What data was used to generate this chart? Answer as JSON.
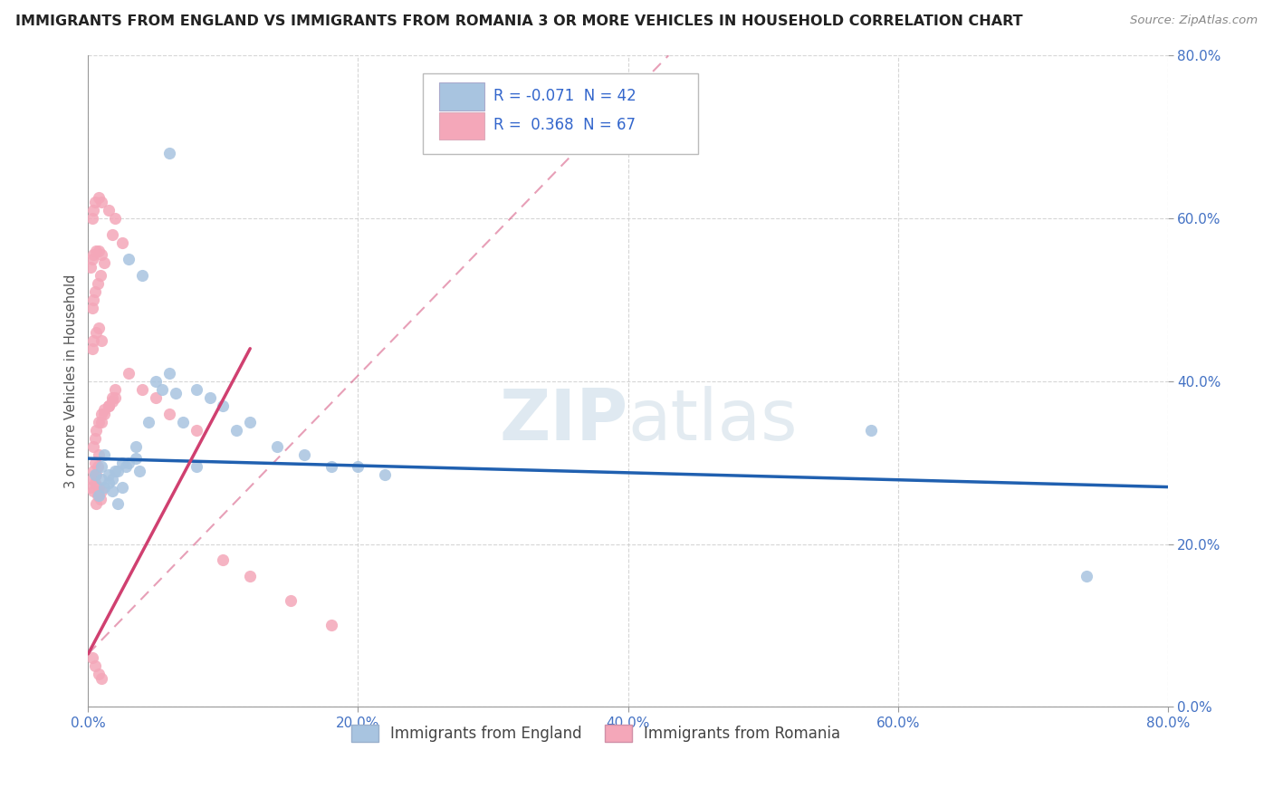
{
  "title": "IMMIGRANTS FROM ENGLAND VS IMMIGRANTS FROM ROMANIA 3 OR MORE VEHICLES IN HOUSEHOLD CORRELATION CHART",
  "source": "Source: ZipAtlas.com",
  "ylabel": "3 or more Vehicles in Household",
  "xlim": [
    0.0,
    0.8
  ],
  "ylim": [
    0.0,
    0.8
  ],
  "xticks": [
    0.0,
    0.2,
    0.4,
    0.6,
    0.8
  ],
  "yticks": [
    0.0,
    0.2,
    0.4,
    0.6,
    0.8
  ],
  "tick_labels": [
    "0.0%",
    "20.0%",
    "40.0%",
    "60.0%",
    "80.0%"
  ],
  "watermark_zip": "ZIP",
  "watermark_atlas": "atlas",
  "legend_england": "Immigrants from England",
  "legend_romania": "Immigrants from Romania",
  "R_england": -0.071,
  "N_england": 42,
  "R_romania": 0.368,
  "N_romania": 67,
  "color_england": "#a8c4e0",
  "color_romania": "#f4a7b9",
  "line_color_england": "#2060b0",
  "line_color_romania": "#d04070",
  "england_x": [
    0.005,
    0.008,
    0.01,
    0.012,
    0.015,
    0.018,
    0.02,
    0.022,
    0.025,
    0.01,
    0.012,
    0.015,
    0.018,
    0.022,
    0.028,
    0.03,
    0.035,
    0.038,
    0.045,
    0.05,
    0.055,
    0.06,
    0.065,
    0.07,
    0.08,
    0.09,
    0.1,
    0.11,
    0.12,
    0.14,
    0.16,
    0.18,
    0.2,
    0.22,
    0.03,
    0.04,
    0.06,
    0.08,
    0.58,
    0.74,
    0.025,
    0.035
  ],
  "england_y": [
    0.285,
    0.26,
    0.28,
    0.27,
    0.275,
    0.265,
    0.29,
    0.25,
    0.27,
    0.295,
    0.31,
    0.285,
    0.28,
    0.29,
    0.295,
    0.3,
    0.305,
    0.29,
    0.35,
    0.4,
    0.39,
    0.41,
    0.385,
    0.35,
    0.39,
    0.38,
    0.37,
    0.34,
    0.35,
    0.32,
    0.31,
    0.295,
    0.295,
    0.285,
    0.55,
    0.53,
    0.68,
    0.295,
    0.34,
    0.16,
    0.3,
    0.32
  ],
  "romania_x": [
    0.002,
    0.003,
    0.004,
    0.005,
    0.006,
    0.007,
    0.008,
    0.009,
    0.01,
    0.004,
    0.005,
    0.006,
    0.007,
    0.008,
    0.01,
    0.012,
    0.015,
    0.018,
    0.02,
    0.004,
    0.005,
    0.006,
    0.008,
    0.01,
    0.012,
    0.015,
    0.018,
    0.02,
    0.003,
    0.004,
    0.006,
    0.008,
    0.01,
    0.003,
    0.004,
    0.005,
    0.007,
    0.009,
    0.002,
    0.003,
    0.004,
    0.006,
    0.008,
    0.01,
    0.012,
    0.003,
    0.004,
    0.005,
    0.008,
    0.01,
    0.015,
    0.018,
    0.02,
    0.025,
    0.03,
    0.04,
    0.05,
    0.06,
    0.08,
    0.1,
    0.12,
    0.15,
    0.18,
    0.003,
    0.005,
    0.008,
    0.01
  ],
  "romania_y": [
    0.27,
    0.28,
    0.265,
    0.275,
    0.25,
    0.26,
    0.27,
    0.255,
    0.265,
    0.29,
    0.3,
    0.285,
    0.295,
    0.31,
    0.35,
    0.36,
    0.37,
    0.38,
    0.39,
    0.32,
    0.33,
    0.34,
    0.35,
    0.36,
    0.365,
    0.37,
    0.375,
    0.38,
    0.44,
    0.45,
    0.46,
    0.465,
    0.45,
    0.49,
    0.5,
    0.51,
    0.52,
    0.53,
    0.54,
    0.55,
    0.555,
    0.56,
    0.56,
    0.555,
    0.545,
    0.6,
    0.61,
    0.62,
    0.625,
    0.62,
    0.61,
    0.58,
    0.6,
    0.57,
    0.41,
    0.39,
    0.38,
    0.36,
    0.34,
    0.18,
    0.16,
    0.13,
    0.1,
    0.06,
    0.05,
    0.04,
    0.035
  ],
  "eng_line_x0": 0.0,
  "eng_line_x1": 0.8,
  "eng_line_y0": 0.305,
  "eng_line_y1": 0.27,
  "rom_line_solid_x0": 0.0,
  "rom_line_solid_x1": 0.12,
  "rom_line_solid_y0": 0.065,
  "rom_line_solid_y1": 0.44,
  "rom_line_dash_x0": 0.0,
  "rom_line_dash_x1": 0.43,
  "rom_line_dash_y0": 0.065,
  "rom_line_dash_y1": 0.8
}
